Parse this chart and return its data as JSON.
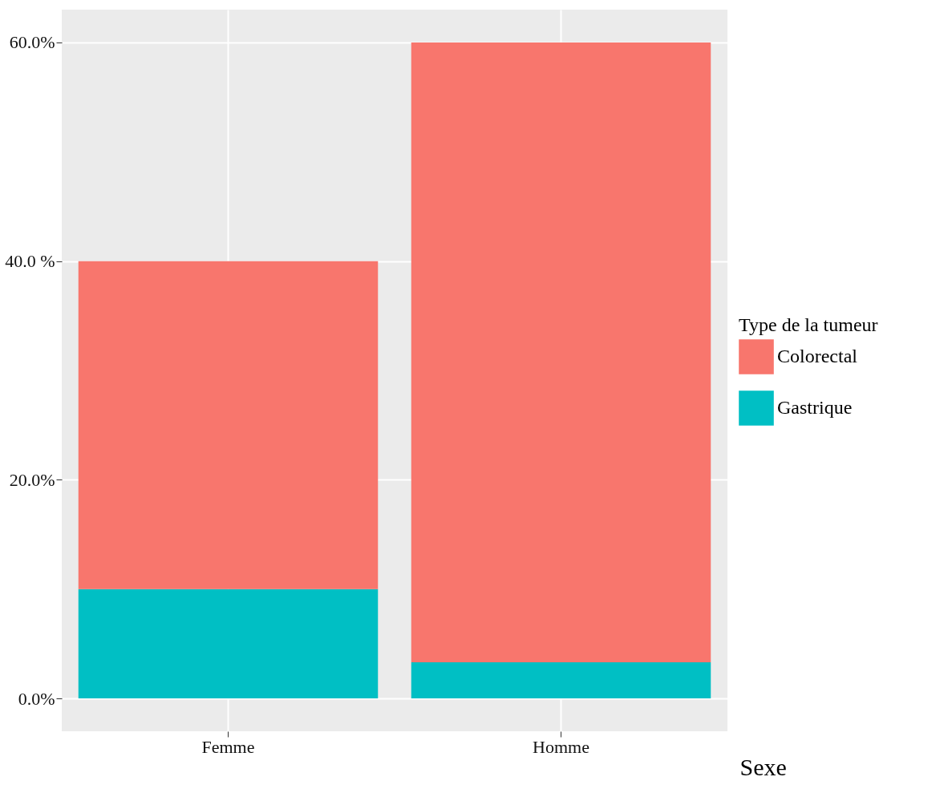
{
  "chart_data": {
    "type": "bar",
    "stacked": true,
    "xlabel": "Sexe",
    "legend_title": "Type de la tumeur",
    "legend": "right",
    "grid": true,
    "categories": [
      "Femme",
      "Homme"
    ],
    "series": [
      {
        "name": "Gastrique",
        "color": "#00bfc4",
        "values": [
          10,
          3.3
        ]
      },
      {
        "name": "Colorectal",
        "color": "#f8766d",
        "values": [
          30,
          56.7
        ]
      }
    ],
    "ylim": [
      -3,
      63
    ],
    "yticks": [
      {
        "value": 0,
        "label": "0.0%"
      },
      {
        "value": 20,
        "label": "20.0%"
      },
      {
        "value": 40,
        "label": "40.0 %"
      },
      {
        "value": 60,
        "label": "60.0%"
      }
    ]
  }
}
